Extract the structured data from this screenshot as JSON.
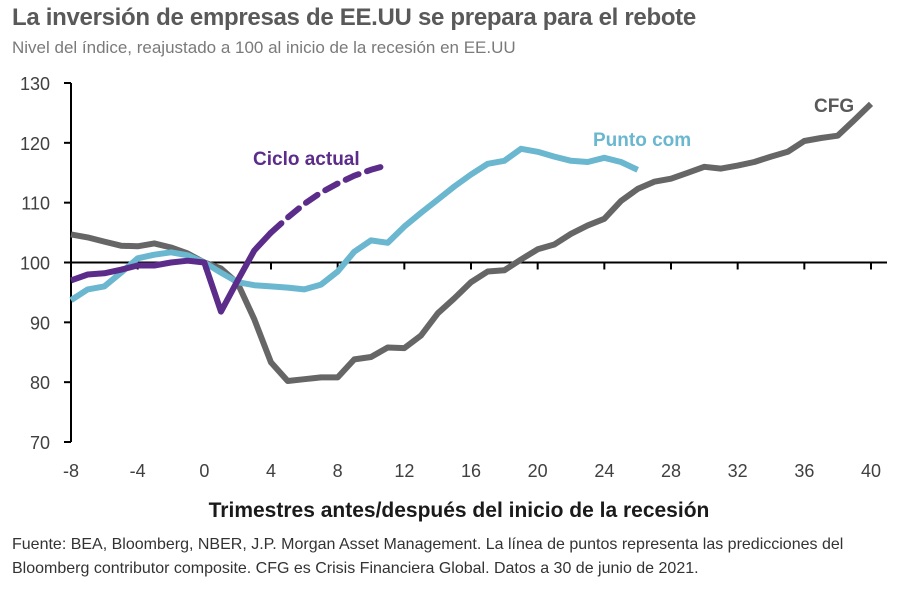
{
  "chart_data": {
    "type": "line",
    "title": "La inversión de empresas de EE.UU se prepara para el rebote",
    "subtitle": "Nivel del índice, reajustado a 100 al inicio de la recesión en EE.UU",
    "xlabel": "Trimestres antes/después del inicio de la recesión",
    "ylabel": "",
    "xlim": [
      -8,
      40
    ],
    "ylim": [
      70,
      130
    ],
    "xticks": [
      -8,
      -4,
      0,
      4,
      8,
      12,
      16,
      20,
      24,
      28,
      32,
      36,
      40
    ],
    "yticks": [
      70,
      80,
      90,
      100,
      110,
      120,
      130
    ],
    "baseline": 100,
    "grid": false,
    "legend": "inline-labels",
    "series": [
      {
        "name": "Punto com",
        "color": "#6ab7cf",
        "label_color": "#6ab7cf",
        "style": "solid",
        "x": [
          -8,
          -7,
          -6,
          -5,
          -4,
          -3,
          -2,
          -1,
          0,
          1,
          2,
          3,
          4,
          5,
          6,
          7,
          8,
          9,
          10,
          11,
          12,
          13,
          14,
          15,
          16,
          17,
          18,
          19,
          20,
          21,
          22,
          23,
          24,
          25,
          26
        ],
        "values": [
          93.7,
          95.5,
          96,
          98.3,
          100.7,
          101.3,
          101.7,
          101.2,
          100,
          98.3,
          96.7,
          96.2,
          96,
          95.8,
          95.5,
          96.3,
          98.5,
          101.8,
          103.7,
          103.3,
          106,
          108.3,
          110.5,
          112.7,
          114.7,
          116.5,
          117,
          119,
          118.5,
          117.7,
          117,
          116.8,
          117.5,
          116.8,
          115.5
        ]
      },
      {
        "name": "Ciclo actual",
        "color": "#5b2c8a",
        "label_color": "#5b2c8a",
        "style": "solid",
        "x": [
          -8,
          -7,
          -6,
          -5,
          -4,
          -3,
          -2,
          -1,
          0,
          1,
          2,
          3,
          4
        ],
        "values": [
          97,
          98,
          98.2,
          98.8,
          99.5,
          99.5,
          100,
          100.3,
          100,
          91.8,
          97,
          102,
          105
        ]
      },
      {
        "name": "Ciclo actual (previsión)",
        "color": "#5b2c8a",
        "style": "dashed",
        "x": [
          4,
          5,
          6,
          7,
          8,
          9,
          10,
          11
        ],
        "values": [
          105,
          107.5,
          109.8,
          111.7,
          113.2,
          114.5,
          115.5,
          116.3
        ]
      },
      {
        "name": "CFG",
        "color": "#666666",
        "label_color": "#595959",
        "style": "solid",
        "x": [
          -8,
          -7,
          -6,
          -5,
          -4,
          -3,
          -2,
          -1,
          0,
          1,
          2,
          3,
          4,
          5,
          6,
          7,
          8,
          9,
          10,
          11,
          12,
          13,
          14,
          15,
          16,
          17,
          18,
          19,
          20,
          21,
          22,
          23,
          24,
          25,
          26,
          27,
          28,
          29,
          30,
          31,
          32,
          33,
          34,
          35,
          36,
          37,
          38,
          39,
          40
        ],
        "values": [
          104.7,
          104.2,
          103.5,
          102.8,
          102.7,
          103.2,
          102.5,
          101.5,
          100,
          99,
          96.5,
          90.5,
          83.3,
          80.2,
          80.5,
          80.8,
          80.8,
          83.8,
          84.2,
          85.8,
          85.7,
          87.8,
          91.5,
          94,
          96.7,
          98.5,
          98.7,
          100.5,
          102.2,
          103,
          104.8,
          106.2,
          107.3,
          110.3,
          112.3,
          113.5,
          114,
          115,
          116,
          115.7,
          116.2,
          116.8,
          117.7,
          118.5,
          120.3,
          120.8,
          121.2,
          123.8,
          126.5
        ]
      }
    ],
    "annotations": [
      {
        "text": "Ciclo actual",
        "series": "Ciclo actual"
      },
      {
        "text": "Punto com",
        "series": "Punto com"
      },
      {
        "text": "CFG",
        "series": "CFG"
      }
    ]
  },
  "footnote": "Fuente: BEA, Bloomberg, NBER, J.P. Morgan Asset Management. La línea de puntos representa las predicciones del Bloomberg contributor composite. CFG es Crisis Financiera Global. Datos a 30 de junio de 2021."
}
